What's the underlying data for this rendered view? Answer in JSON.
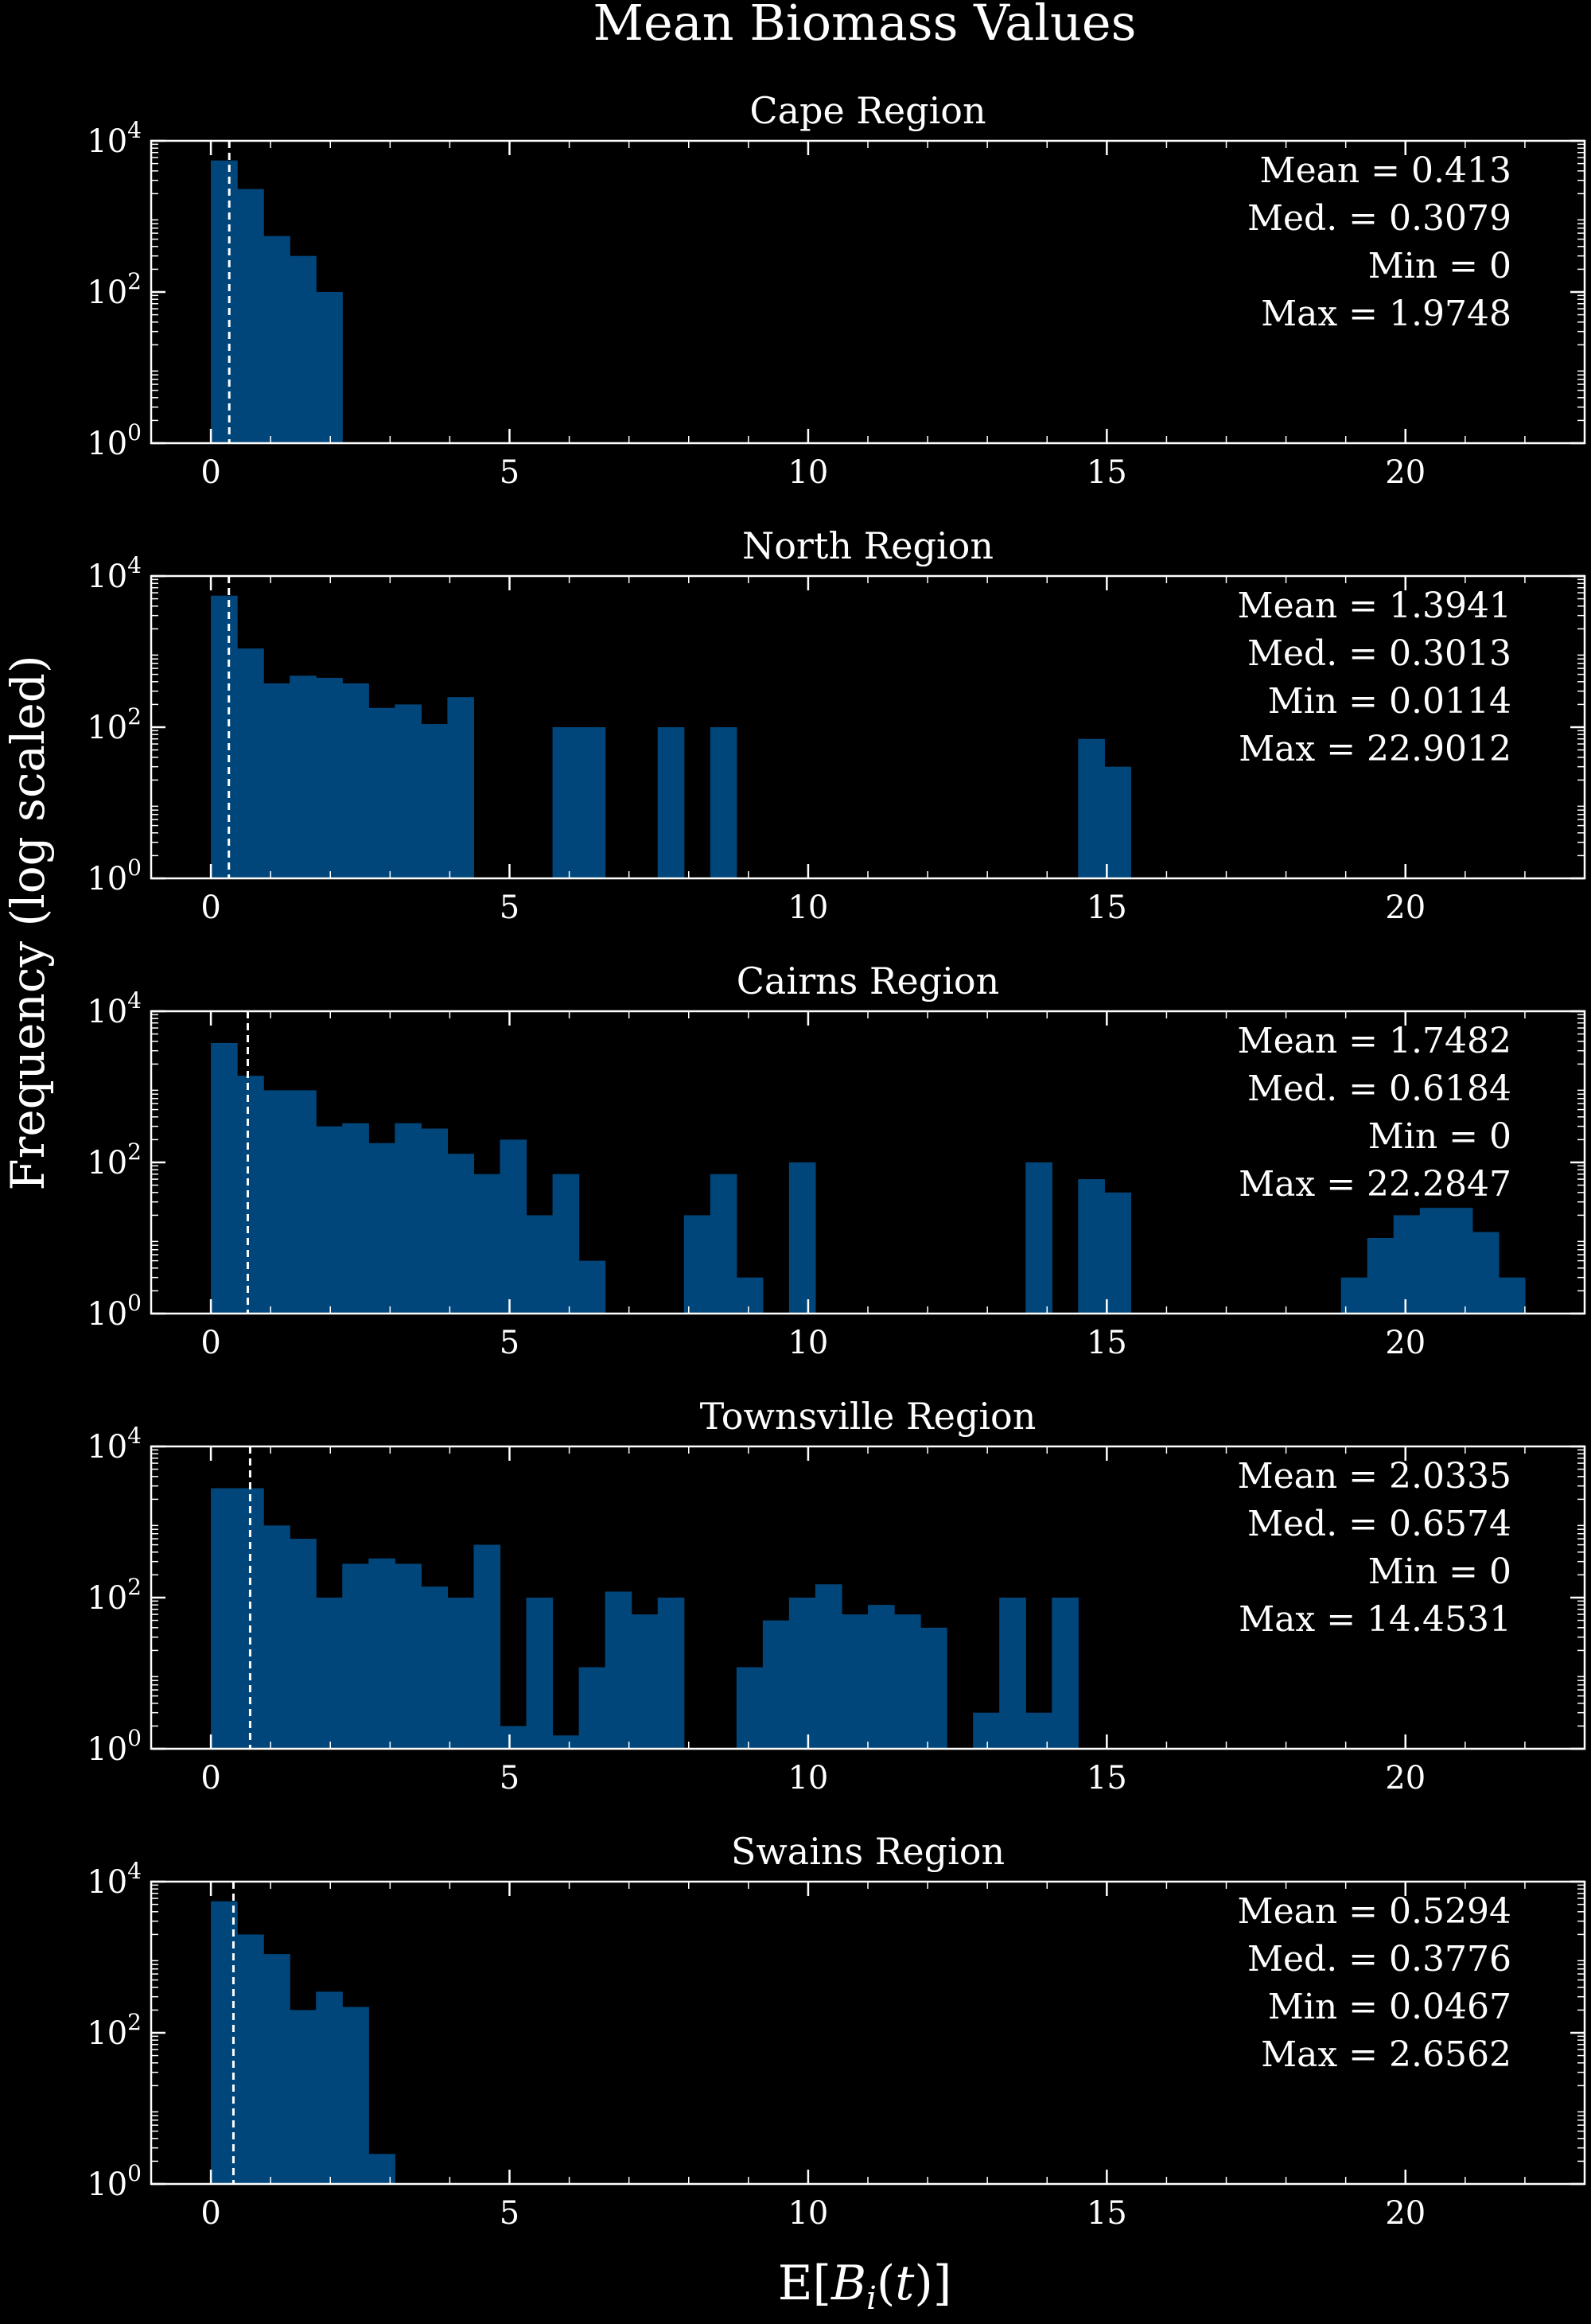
{
  "figure": {
    "title": "Mean Biomass Values",
    "ylabel": "Frequency (log scaled)",
    "xlabel": "E[B_i(t)]",
    "xlabel_parts": {
      "pre": "E[",
      "var": "B",
      "sub": "i",
      "mid": "(",
      "arg": "t",
      "post": ")]"
    }
  },
  "colors": {
    "background": "#000000",
    "bar": "#00467a",
    "axis": "#ffffff",
    "median_line": "#ffffff"
  },
  "chart_data": [
    {
      "type": "bar",
      "title": "Cape Region",
      "xlim": [
        -1,
        23
      ],
      "ylim": [
        1,
        10000
      ],
      "yscale": "log",
      "x_ticks": [
        0,
        5,
        10,
        15,
        20
      ],
      "y_ticks": [
        1,
        100,
        10000
      ],
      "bin_width": 0.44,
      "bins": [
        [
          0.0,
          5500
        ],
        [
          0.44,
          2300
        ],
        [
          0.88,
          550
        ],
        [
          1.32,
          300
        ],
        [
          1.76,
          100
        ]
      ],
      "median": 0.3079,
      "stats": {
        "mean": "Mean = 0.413",
        "median": "Med. = 0.3079",
        "min": "Min = 0",
        "max": "Max = 1.9748"
      }
    },
    {
      "type": "bar",
      "title": "North Region",
      "xlim": [
        -1,
        23
      ],
      "ylim": [
        1,
        10000
      ],
      "yscale": "log",
      "x_ticks": [
        0,
        5,
        10,
        15,
        20
      ],
      "y_ticks": [
        1,
        100,
        10000
      ],
      "bin_width": 0.44,
      "bins": [
        [
          0.0,
          5500
        ],
        [
          0.44,
          1100
        ],
        [
          0.88,
          380
        ],
        [
          1.32,
          480
        ],
        [
          1.76,
          450
        ],
        [
          2.2,
          380
        ],
        [
          2.64,
          180
        ],
        [
          3.08,
          200
        ],
        [
          3.52,
          110
        ],
        [
          3.96,
          250
        ],
        [
          5.72,
          100
        ],
        [
          6.16,
          100
        ],
        [
          7.48,
          100
        ],
        [
          8.36,
          100
        ],
        [
          14.52,
          70
        ],
        [
          14.96,
          30
        ]
      ],
      "median": 0.3013,
      "stats": {
        "mean": "Mean = 1.3941",
        "median": "Med. = 0.3013",
        "min": "Min = 0.0114",
        "max": "Max = 22.9012"
      }
    },
    {
      "type": "bar",
      "title": "Cairns Region",
      "xlim": [
        -1,
        23
      ],
      "ylim": [
        1,
        10000
      ],
      "yscale": "log",
      "x_ticks": [
        0,
        5,
        10,
        15,
        20
      ],
      "y_ticks": [
        1,
        100,
        10000
      ],
      "bin_width": 0.44,
      "bins": [
        [
          0.0,
          3800
        ],
        [
          0.44,
          1400
        ],
        [
          0.88,
          900
        ],
        [
          1.32,
          900
        ],
        [
          1.76,
          300
        ],
        [
          2.2,
          330
        ],
        [
          2.64,
          180
        ],
        [
          3.08,
          330
        ],
        [
          3.52,
          280
        ],
        [
          3.96,
          130
        ],
        [
          4.4,
          70
        ],
        [
          4.84,
          200
        ],
        [
          5.28,
          20
        ],
        [
          5.72,
          70
        ],
        [
          6.16,
          5
        ],
        [
          7.92,
          20
        ],
        [
          8.36,
          70
        ],
        [
          8.8,
          3
        ],
        [
          9.68,
          100
        ],
        [
          13.64,
          100
        ],
        [
          14.52,
          60
        ],
        [
          14.96,
          40
        ],
        [
          18.92,
          3
        ],
        [
          19.36,
          10
        ],
        [
          19.8,
          20
        ],
        [
          20.24,
          25
        ],
        [
          20.68,
          25
        ],
        [
          21.12,
          12
        ],
        [
          21.56,
          3
        ]
      ],
      "median": 0.6184,
      "stats": {
        "mean": "Mean = 1.7482",
        "median": "Med. = 0.6184",
        "min": "Min = 0",
        "max": "Max = 22.2847"
      }
    },
    {
      "type": "bar",
      "title": "Townsville Region",
      "xlim": [
        -1,
        23
      ],
      "ylim": [
        1,
        10000
      ],
      "yscale": "log",
      "x_ticks": [
        0,
        5,
        10,
        15,
        20
      ],
      "y_ticks": [
        1,
        100,
        10000
      ],
      "bin_width": 0.44,
      "bins": [
        [
          0.0,
          2800
        ],
        [
          0.44,
          2800
        ],
        [
          0.88,
          900
        ],
        [
          1.32,
          600
        ],
        [
          1.76,
          100
        ],
        [
          2.2,
          280
        ],
        [
          2.64,
          330
        ],
        [
          3.08,
          280
        ],
        [
          3.52,
          140
        ],
        [
          3.96,
          100
        ],
        [
          4.4,
          500
        ],
        [
          4.84,
          2
        ],
        [
          5.28,
          100
        ],
        [
          5.72,
          1.5
        ],
        [
          6.16,
          12
        ],
        [
          6.6,
          120
        ],
        [
          7.04,
          60
        ],
        [
          7.48,
          100
        ],
        [
          8.8,
          12
        ],
        [
          9.24,
          50
        ],
        [
          9.68,
          100
        ],
        [
          10.12,
          150
        ],
        [
          10.56,
          60
        ],
        [
          11.0,
          80
        ],
        [
          11.44,
          60
        ],
        [
          11.88,
          40
        ],
        [
          12.76,
          3
        ],
        [
          13.2,
          100
        ],
        [
          13.64,
          3
        ],
        [
          14.08,
          100
        ]
      ],
      "median": 0.6574,
      "stats": {
        "mean": "Mean = 2.0335",
        "median": "Med. = 0.6574",
        "min": "Min = 0",
        "max": "Max = 14.4531"
      }
    },
    {
      "type": "bar",
      "title": "Swains Region",
      "xlim": [
        -1,
        23
      ],
      "ylim": [
        1,
        10000
      ],
      "yscale": "log",
      "x_ticks": [
        0,
        5,
        10,
        15,
        20
      ],
      "y_ticks": [
        1,
        100,
        10000
      ],
      "bin_width": 0.44,
      "bins": [
        [
          0.0,
          5500
        ],
        [
          0.44,
          2000
        ],
        [
          0.88,
          1100
        ],
        [
          1.32,
          200
        ],
        [
          1.76,
          350
        ],
        [
          2.2,
          220
        ],
        [
          2.64,
          2.5
        ]
      ],
      "median": 0.3776,
      "stats": {
        "mean": "Mean = 0.5294",
        "median": "Med. = 0.3776",
        "min": "Min = 0.0467",
        "max": "Max = 2.6562"
      }
    }
  ]
}
